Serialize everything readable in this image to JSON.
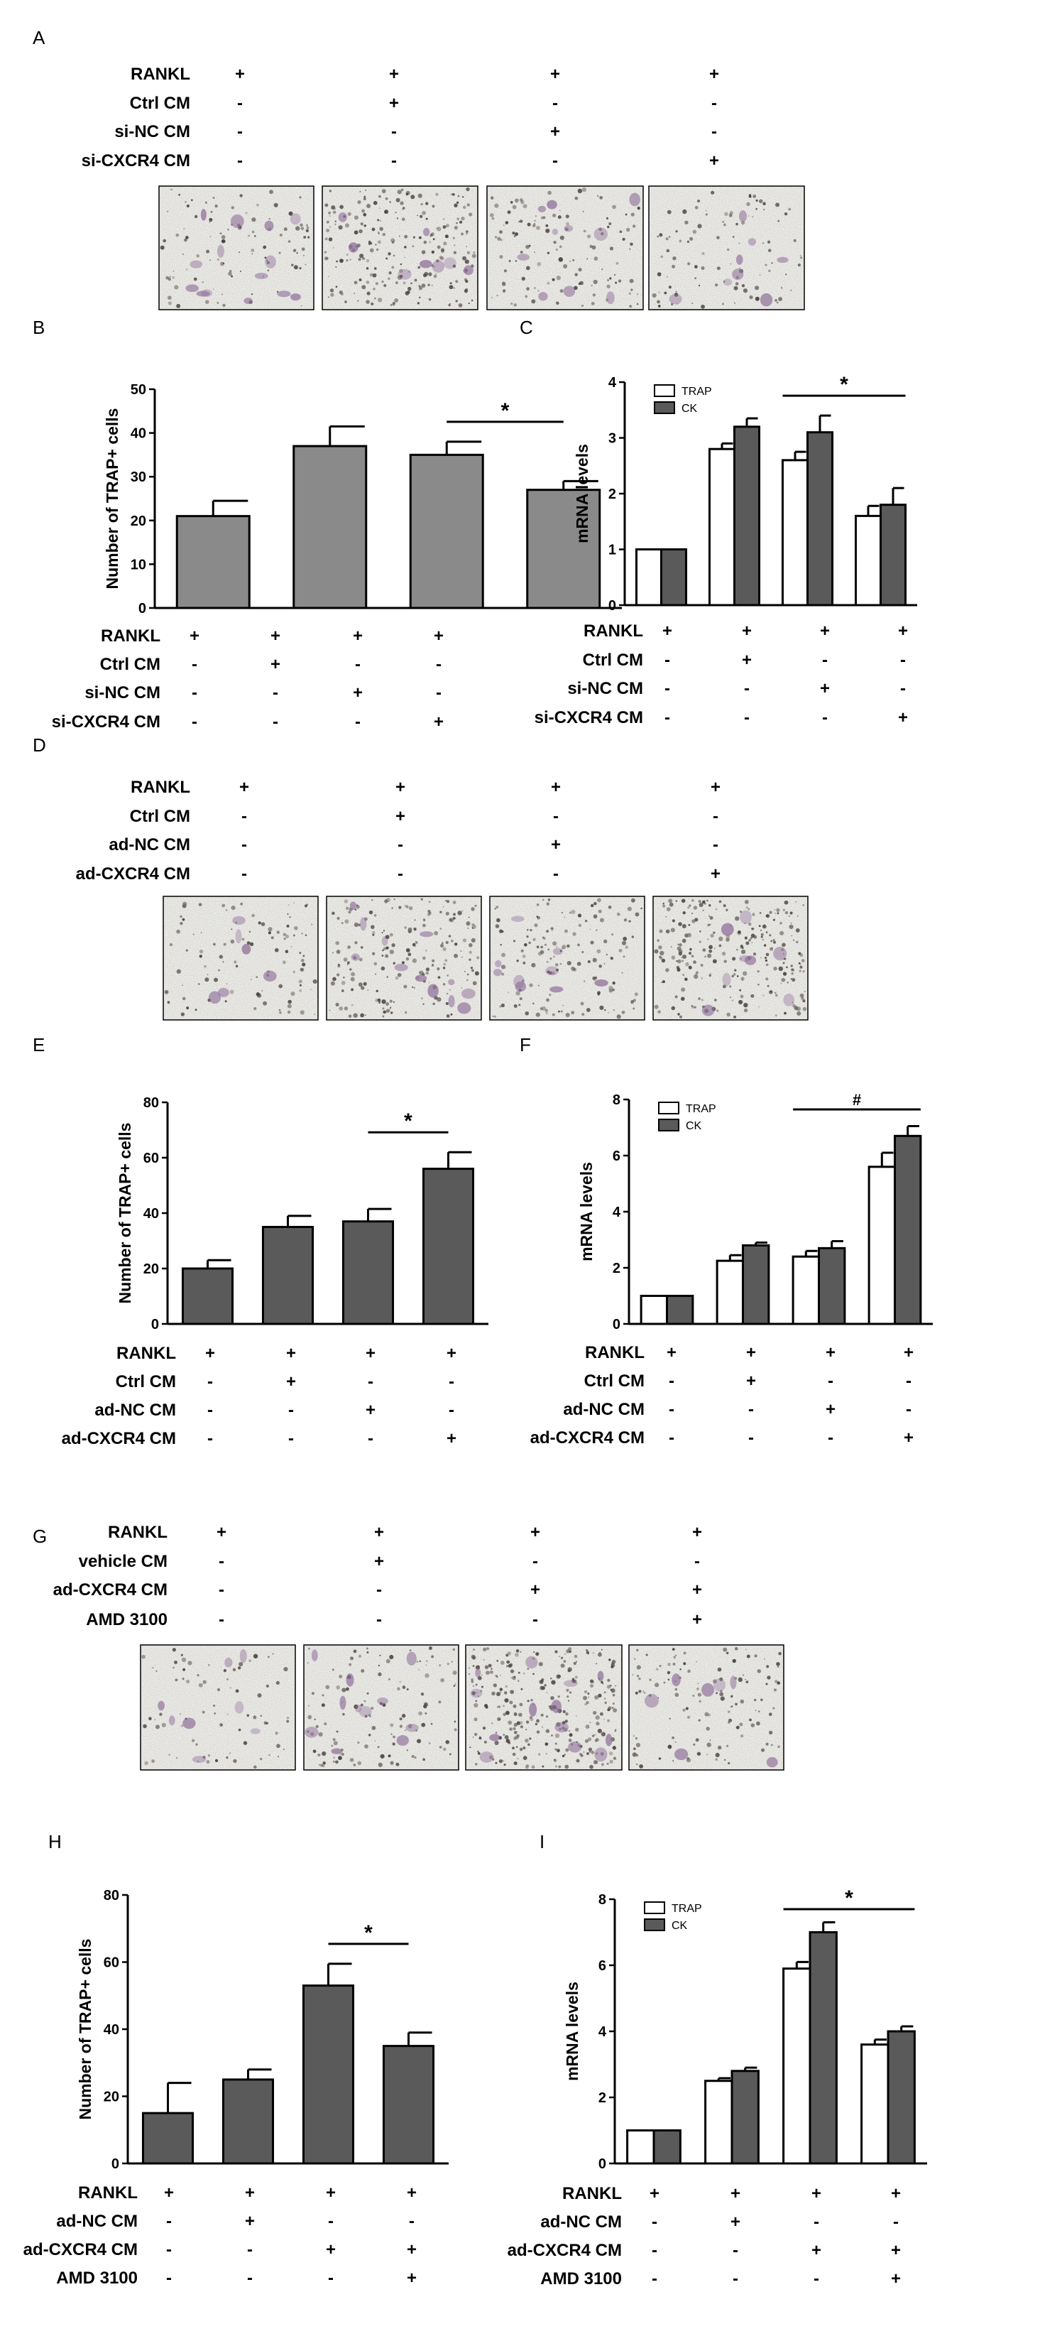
{
  "panels": [
    {
      "letter": "A",
      "kind": "micrographs",
      "rows": [
        {
          "label": "RANKL",
          "marks": [
            "+",
            "+",
            "+",
            "+"
          ]
        },
        {
          "label": "Ctrl CM",
          "marks": [
            "-",
            "+",
            "-",
            "-"
          ]
        },
        {
          "label": "si-NC CM",
          "marks": [
            "-",
            "-",
            "+",
            "-"
          ]
        },
        {
          "label": "si-CXCR4 CM",
          "marks": [
            "-",
            "-",
            "-",
            "+"
          ]
        }
      ],
      "images": [
        {
          "name": "micrograph-rankl-only",
          "density": 0.4
        },
        {
          "name": "micrograph-ctrl-cm",
          "density": 0.9
        },
        {
          "name": "micrograph-si-nc-cm",
          "density": 0.5
        },
        {
          "name": "micrograph-si-cxcr4-cm",
          "density": 0.4
        }
      ]
    },
    {
      "letter": "B",
      "kind": "chart",
      "chart_index": 0,
      "rows": [
        {
          "label": "RANKL",
          "marks": [
            "+",
            "+",
            "+",
            "+"
          ]
        },
        {
          "label": "Ctrl CM",
          "marks": [
            "-",
            "+",
            "-",
            "-"
          ]
        },
        {
          "label": "si-NC CM",
          "marks": [
            "-",
            "-",
            "+",
            "-"
          ]
        },
        {
          "label": "si-CXCR4 CM",
          "marks": [
            "-",
            "-",
            "-",
            "+"
          ]
        }
      ]
    },
    {
      "letter": "C",
      "kind": "chart",
      "chart_index": 1,
      "rows": [
        {
          "label": "RANKL",
          "marks": [
            "+",
            "+",
            "+",
            "+"
          ]
        },
        {
          "label": "Ctrl CM",
          "marks": [
            "-",
            "+",
            "-",
            "-"
          ]
        },
        {
          "label": "si-NC CM",
          "marks": [
            "-",
            "-",
            "+",
            "-"
          ]
        },
        {
          "label": "si-CXCR4 CM",
          "marks": [
            "-",
            "-",
            "-",
            "+"
          ]
        }
      ]
    },
    {
      "letter": "D",
      "kind": "micrographs",
      "rows": [
        {
          "label": "RANKL",
          "marks": [
            "+",
            "+",
            "+",
            "+"
          ]
        },
        {
          "label": "Ctrl CM",
          "marks": [
            "-",
            "+",
            "-",
            "-"
          ]
        },
        {
          "label": "ad-NC CM",
          "marks": [
            "-",
            "-",
            "+",
            "-"
          ]
        },
        {
          "label": "ad-CXCR4 CM",
          "marks": [
            "-",
            "-",
            "-",
            "+"
          ]
        }
      ],
      "images": [
        {
          "name": "micrograph-rankl-only",
          "density": 0.4
        },
        {
          "name": "micrograph-ctrl-cm",
          "density": 0.8
        },
        {
          "name": "micrograph-ad-nc-cm",
          "density": 0.6
        },
        {
          "name": "micrograph-ad-cxcr4-cm",
          "density": 1.0
        }
      ]
    },
    {
      "letter": "E",
      "kind": "chart",
      "chart_index": 2,
      "rows": [
        {
          "label": "RANKL",
          "marks": [
            "+",
            "+",
            "+",
            "+"
          ]
        },
        {
          "label": "Ctrl CM",
          "marks": [
            "-",
            "+",
            "-",
            "-"
          ]
        },
        {
          "label": "ad-NC CM",
          "marks": [
            "-",
            "-",
            "+",
            "-"
          ]
        },
        {
          "label": "ad-CXCR4 CM",
          "marks": [
            "-",
            "-",
            "-",
            "+"
          ]
        }
      ]
    },
    {
      "letter": "F",
      "kind": "chart",
      "chart_index": 3,
      "rows": [
        {
          "label": "RANKL",
          "marks": [
            "+",
            "+",
            "+",
            "+"
          ]
        },
        {
          "label": "Ctrl CM",
          "marks": [
            "-",
            "+",
            "-",
            "-"
          ]
        },
        {
          "label": "ad-NC CM",
          "marks": [
            "-",
            "-",
            "+",
            "-"
          ]
        },
        {
          "label": "ad-CXCR4 CM",
          "marks": [
            "-",
            "-",
            "-",
            "+"
          ]
        }
      ]
    },
    {
      "letter": "G",
      "kind": "micrographs",
      "rows": [
        {
          "label": "RANKL",
          "marks": [
            "+",
            "+",
            "+",
            "+"
          ]
        },
        {
          "label": "vehicle CM",
          "marks": [
            "-",
            "+",
            "-",
            "-"
          ]
        },
        {
          "label": "ad-CXCR4 CM",
          "marks": [
            "-",
            "-",
            "+",
            "+"
          ]
        },
        {
          "label": "AMD 3100",
          "marks": [
            "-",
            "-",
            "-",
            "+"
          ]
        }
      ],
      "images": [
        {
          "name": "micrograph-rankl-only",
          "density": 0.3
        },
        {
          "name": "micrograph-vehicle-cm",
          "density": 0.5
        },
        {
          "name": "micrograph-ad-cxcr4-cm",
          "density": 1.2
        },
        {
          "name": "micrograph-ad-cxcr4-amd3100",
          "density": 0.5
        }
      ]
    },
    {
      "letter": "H",
      "kind": "chart",
      "chart_index": 4,
      "rows": [
        {
          "label": "RANKL",
          "marks": [
            "+",
            "+",
            "+",
            "+"
          ]
        },
        {
          "label": "ad-NC CM",
          "marks": [
            "-",
            "+",
            "-",
            "-"
          ]
        },
        {
          "label": "ad-CXCR4 CM",
          "marks": [
            "-",
            "-",
            "+",
            "+"
          ]
        },
        {
          "label": "AMD 3100",
          "marks": [
            "-",
            "-",
            "-",
            "+"
          ]
        }
      ]
    },
    {
      "letter": "I",
      "kind": "chart",
      "chart_index": 5,
      "rows": [
        {
          "label": "RANKL",
          "marks": [
            "+",
            "+",
            "+",
            "+"
          ]
        },
        {
          "label": "ad-NC CM",
          "marks": [
            "-",
            "+",
            "-",
            "-"
          ]
        },
        {
          "label": "ad-CXCR4 CM",
          "marks": [
            "-",
            "-",
            "+",
            "+"
          ]
        },
        {
          "label": "AMD 3100",
          "marks": [
            "-",
            "-",
            "-",
            "+"
          ]
        }
      ]
    }
  ],
  "colors": {
    "bar_light": "#8a8a8a",
    "bar_dark": "#5a5a5a",
    "bar_white": "#ffffff",
    "stroke": "#000000"
  },
  "chart_data": [
    {
      "panel": "B",
      "type": "bar",
      "ylabel": "Number of TRAP+ cells",
      "ylim": [
        0,
        50
      ],
      "yticks": [
        0,
        10,
        20,
        30,
        40,
        50
      ],
      "categories": [
        "1",
        "2",
        "3",
        "4"
      ],
      "series": [
        {
          "values": [
            21,
            37,
            35,
            27
          ],
          "errors": [
            3.5,
            4.5,
            3,
            2
          ],
          "color": "light"
        }
      ],
      "annotation": {
        "symbol": "*",
        "between": [
          2,
          3
        ]
      }
    },
    {
      "panel": "C",
      "type": "bar",
      "ylabel": "mRNA levels",
      "ylim": [
        0,
        4
      ],
      "yticks": [
        0,
        1,
        2,
        3,
        4
      ],
      "categories": [
        "1",
        "2",
        "3",
        "4"
      ],
      "legend": [
        "TRAP",
        "CK"
      ],
      "series": [
        {
          "name": "TRAP",
          "values": [
            1,
            2.8,
            2.6,
            1.6
          ],
          "errors": [
            0,
            0.1,
            0.15,
            0.18
          ],
          "color": "white"
        },
        {
          "name": "CK",
          "values": [
            1,
            3.2,
            3.1,
            1.8
          ],
          "errors": [
            0,
            0.15,
            0.3,
            0.3
          ],
          "color": "dark"
        }
      ],
      "annotation": {
        "symbol": "*",
        "between": [
          2,
          3
        ]
      }
    },
    {
      "panel": "E",
      "type": "bar",
      "ylabel": "Number of TRAP+ cells",
      "ylim": [
        0,
        80
      ],
      "yticks": [
        0,
        20,
        40,
        60,
        80
      ],
      "categories": [
        "1",
        "2",
        "3",
        "4"
      ],
      "series": [
        {
          "values": [
            20,
            35,
            37,
            56
          ],
          "errors": [
            3,
            4,
            4.5,
            6
          ],
          "color": "dark"
        }
      ],
      "annotation": {
        "symbol": "*",
        "between": [
          2,
          3
        ]
      }
    },
    {
      "panel": "F",
      "type": "bar",
      "ylabel": "mRNA levels",
      "ylim": [
        0,
        8
      ],
      "yticks": [
        0,
        2,
        4,
        6,
        8
      ],
      "categories": [
        "1",
        "2",
        "3",
        "4"
      ],
      "legend": [
        "TRAP",
        "CK"
      ],
      "series": [
        {
          "name": "TRAP",
          "values": [
            1,
            2.25,
            2.4,
            5.6
          ],
          "errors": [
            0,
            0.2,
            0.2,
            0.5
          ],
          "color": "white"
        },
        {
          "name": "CK",
          "values": [
            1,
            2.8,
            2.7,
            6.7
          ],
          "errors": [
            0,
            0.1,
            0.25,
            0.35
          ],
          "color": "dark"
        }
      ],
      "annotation": {
        "symbol": "#",
        "between": [
          2,
          3
        ]
      }
    },
    {
      "panel": "H",
      "type": "bar",
      "ylabel": "Number of TRAP+ cells",
      "ylim": [
        0,
        80
      ],
      "yticks": [
        0,
        20,
        40,
        60,
        80
      ],
      "categories": [
        "1",
        "2",
        "3",
        "4"
      ],
      "series": [
        {
          "values": [
            15,
            25,
            53,
            35
          ],
          "errors": [
            9,
            3,
            6.5,
            4
          ],
          "color": "dark"
        }
      ],
      "annotation": {
        "symbol": "*",
        "between": [
          2,
          3
        ]
      }
    },
    {
      "panel": "I",
      "type": "bar",
      "ylabel": "mRNA levels",
      "ylim": [
        0,
        8
      ],
      "yticks": [
        0,
        2,
        4,
        6,
        8
      ],
      "categories": [
        "1",
        "2",
        "3",
        "4"
      ],
      "legend": [
        "TRAP",
        "CK"
      ],
      "series": [
        {
          "name": "TRAP",
          "values": [
            1,
            2.5,
            5.9,
            3.6
          ],
          "errors": [
            0,
            0.08,
            0.2,
            0.15
          ],
          "color": "white"
        },
        {
          "name": "CK",
          "values": [
            1,
            2.8,
            7.0,
            4.0
          ],
          "errors": [
            0,
            0.1,
            0.3,
            0.15
          ],
          "color": "dark"
        }
      ],
      "annotation": {
        "symbol": "*",
        "between": [
          2,
          3
        ]
      }
    }
  ]
}
